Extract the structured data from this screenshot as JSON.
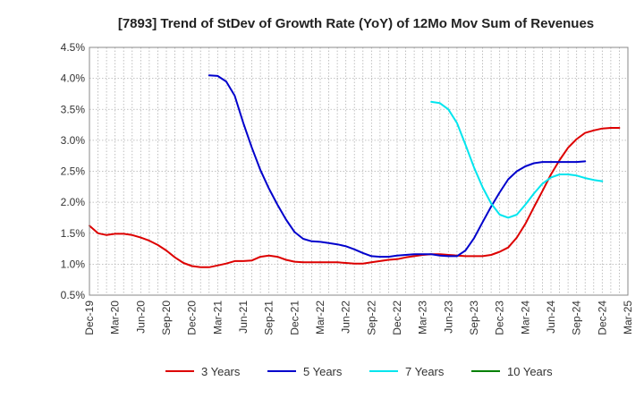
{
  "chart_data": {
    "type": "line",
    "title": "[7893]  Trend of StDev of Growth Rate (YoY) of 12Mo Mov Sum of Revenues",
    "xlabel": "",
    "ylabel": "",
    "ylim": [
      0.5,
      4.5
    ],
    "yticks": [
      "0.5%",
      "1.0%",
      "1.5%",
      "2.0%",
      "2.5%",
      "3.0%",
      "3.5%",
      "4.0%",
      "4.5%"
    ],
    "xticks": [
      "Dec-19",
      "Mar-20",
      "Jun-20",
      "Sep-20",
      "Dec-20",
      "Mar-21",
      "Jun-21",
      "Sep-21",
      "Dec-21",
      "Mar-22",
      "Jun-22",
      "Sep-22",
      "Dec-22",
      "Mar-23",
      "Jun-23",
      "Sep-23",
      "Dec-23",
      "Mar-24",
      "Jun-24",
      "Sep-24",
      "Dec-24",
      "Mar-25"
    ],
    "x_start": "Dec-19",
    "x_months": 63,
    "legend_position": "bottom",
    "series": [
      {
        "name": "3 Years",
        "color": "#dd0000",
        "points": [
          [
            0,
            1.62
          ],
          [
            1,
            1.5
          ],
          [
            2,
            1.47
          ],
          [
            3,
            1.49
          ],
          [
            4,
            1.49
          ],
          [
            5,
            1.47
          ],
          [
            6,
            1.43
          ],
          [
            7,
            1.38
          ],
          [
            8,
            1.31
          ],
          [
            9,
            1.22
          ],
          [
            10,
            1.11
          ],
          [
            11,
            1.02
          ],
          [
            12,
            0.97
          ],
          [
            13,
            0.95
          ],
          [
            14,
            0.95
          ],
          [
            15,
            0.98
          ],
          [
            16,
            1.01
          ],
          [
            17,
            1.05
          ],
          [
            18,
            1.05
          ],
          [
            19,
            1.06
          ],
          [
            20,
            1.12
          ],
          [
            21,
            1.14
          ],
          [
            22,
            1.12
          ],
          [
            23,
            1.07
          ],
          [
            24,
            1.04
          ],
          [
            25,
            1.03
          ],
          [
            26,
            1.03
          ],
          [
            27,
            1.03
          ],
          [
            28,
            1.03
          ],
          [
            29,
            1.03
          ],
          [
            30,
            1.02
          ],
          [
            31,
            1.01
          ],
          [
            32,
            1.01
          ],
          [
            33,
            1.03
          ],
          [
            34,
            1.05
          ],
          [
            35,
            1.07
          ],
          [
            36,
            1.08
          ],
          [
            37,
            1.11
          ],
          [
            38,
            1.13
          ],
          [
            39,
            1.15
          ],
          [
            40,
            1.16
          ],
          [
            41,
            1.16
          ],
          [
            42,
            1.15
          ],
          [
            43,
            1.14
          ],
          [
            44,
            1.13
          ],
          [
            45,
            1.13
          ],
          [
            46,
            1.13
          ],
          [
            47,
            1.15
          ],
          [
            48,
            1.2
          ],
          [
            49,
            1.27
          ],
          [
            50,
            1.43
          ],
          [
            51,
            1.65
          ],
          [
            52,
            1.92
          ],
          [
            53,
            2.18
          ],
          [
            54,
            2.45
          ],
          [
            55,
            2.68
          ],
          [
            56,
            2.88
          ],
          [
            57,
            3.02
          ],
          [
            58,
            3.12
          ],
          [
            59,
            3.16
          ],
          [
            60,
            3.19
          ],
          [
            61,
            3.2
          ],
          [
            62,
            3.2
          ]
        ]
      },
      {
        "name": "5 Years",
        "color": "#0000cc",
        "points": [
          [
            14,
            4.05
          ],
          [
            15,
            4.04
          ],
          [
            16,
            3.95
          ],
          [
            17,
            3.72
          ],
          [
            18,
            3.28
          ],
          [
            19,
            2.88
          ],
          [
            20,
            2.52
          ],
          [
            21,
            2.22
          ],
          [
            22,
            1.96
          ],
          [
            23,
            1.72
          ],
          [
            24,
            1.52
          ],
          [
            25,
            1.41
          ],
          [
            26,
            1.37
          ],
          [
            27,
            1.36
          ],
          [
            28,
            1.34
          ],
          [
            29,
            1.32
          ],
          [
            30,
            1.29
          ],
          [
            31,
            1.24
          ],
          [
            32,
            1.18
          ],
          [
            33,
            1.13
          ],
          [
            34,
            1.12
          ],
          [
            35,
            1.12
          ],
          [
            36,
            1.14
          ],
          [
            37,
            1.15
          ],
          [
            38,
            1.16
          ],
          [
            39,
            1.16
          ],
          [
            40,
            1.16
          ],
          [
            41,
            1.14
          ],
          [
            42,
            1.13
          ],
          [
            43,
            1.13
          ],
          [
            44,
            1.22
          ],
          [
            45,
            1.42
          ],
          [
            46,
            1.68
          ],
          [
            47,
            1.93
          ],
          [
            48,
            2.16
          ],
          [
            49,
            2.37
          ],
          [
            50,
            2.5
          ],
          [
            51,
            2.58
          ],
          [
            52,
            2.63
          ],
          [
            53,
            2.65
          ],
          [
            54,
            2.65
          ],
          [
            55,
            2.65
          ],
          [
            56,
            2.65
          ],
          [
            57,
            2.65
          ],
          [
            58,
            2.66
          ]
        ]
      },
      {
        "name": "7 Years",
        "color": "#00e5ee",
        "points": [
          [
            40,
            3.62
          ],
          [
            41,
            3.6
          ],
          [
            42,
            3.5
          ],
          [
            43,
            3.28
          ],
          [
            44,
            2.93
          ],
          [
            45,
            2.56
          ],
          [
            46,
            2.24
          ],
          [
            47,
            1.98
          ],
          [
            48,
            1.8
          ],
          [
            49,
            1.75
          ],
          [
            50,
            1.8
          ],
          [
            51,
            1.96
          ],
          [
            52,
            2.14
          ],
          [
            53,
            2.3
          ],
          [
            54,
            2.4
          ],
          [
            55,
            2.45
          ],
          [
            56,
            2.45
          ],
          [
            57,
            2.43
          ],
          [
            58,
            2.39
          ],
          [
            59,
            2.36
          ],
          [
            60,
            2.34
          ]
        ]
      },
      {
        "name": "10 Years",
        "color": "#008000",
        "points": []
      }
    ]
  }
}
